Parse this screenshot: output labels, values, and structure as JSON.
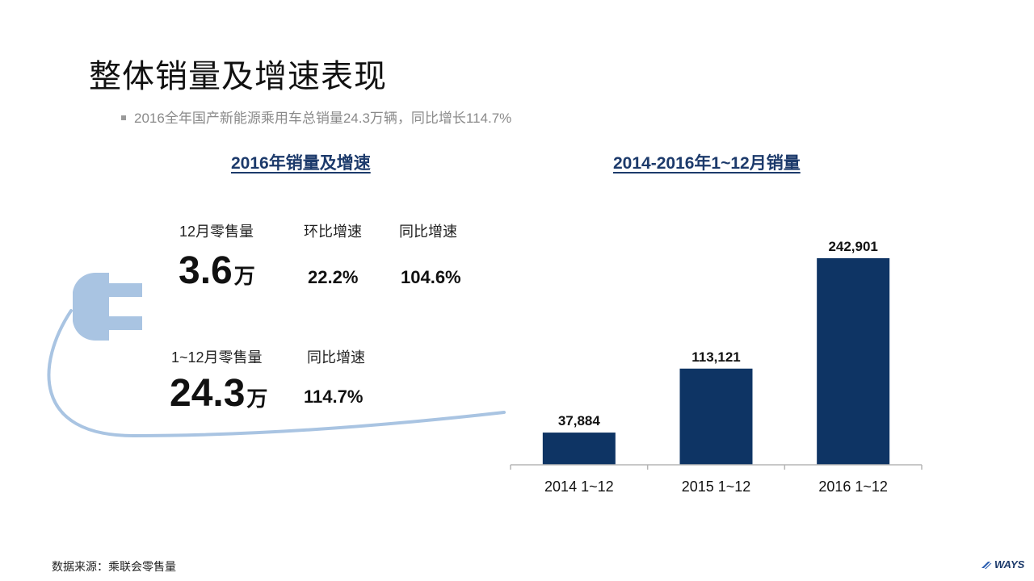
{
  "title": "整体销量及增速表现",
  "bullet": "2016全年国产新能源乘用车总销量24.3万辆，同比增长114.7%",
  "left_section": {
    "title": "2016年销量及增速",
    "december": {
      "label": "12月零售量",
      "value": "3.6",
      "unit": "万",
      "mom_label": "环比增速",
      "mom_value": "22.2%",
      "yoy_label": "同比增速",
      "yoy_value": "104.6%"
    },
    "annual": {
      "label": "1~12月零售量",
      "value": "24.3",
      "unit": "万",
      "yoy_label": "同比增速",
      "yoy_value": "114.7%"
    }
  },
  "right_section": {
    "title": "2014-2016年1~12月销量"
  },
  "chart_data": {
    "type": "bar",
    "title": "2014-2016年1~12月销量",
    "categories": [
      "2014 1~12",
      "2015 1~12",
      "2016 1~12"
    ],
    "values": [
      37884,
      113121,
      242901
    ],
    "value_labels": [
      "37,884",
      "113,121",
      "242,901"
    ],
    "xlabel": "",
    "ylabel": "",
    "ylim": [
      0,
      242901
    ],
    "bar_color": "#0e3464",
    "grid": false,
    "legend": false
  },
  "footer": {
    "source": "数据来源：乘联会零售量",
    "logo_text": "WAYS"
  },
  "colors": {
    "plug": "#a9c4e2",
    "title_accent": "#1c3a6b"
  }
}
